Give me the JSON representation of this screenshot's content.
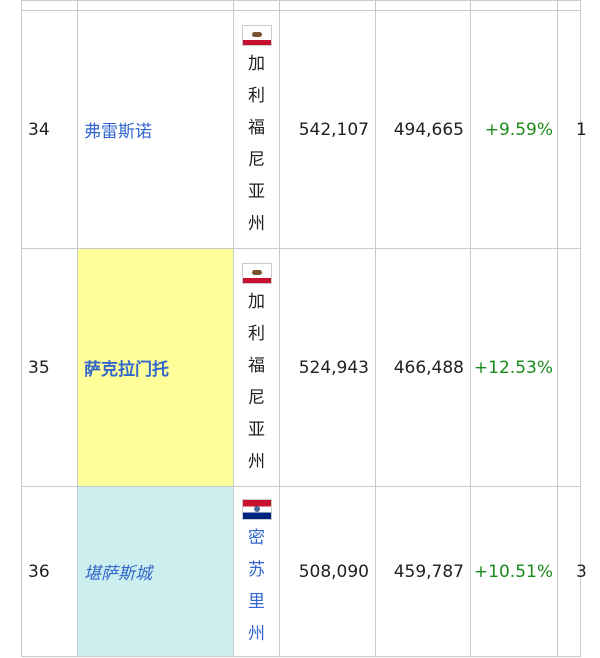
{
  "rows": [
    {
      "rank": "34",
      "city": "弗雷斯诺",
      "state_chars": [
        "加",
        "利",
        "福",
        "尼",
        "亚",
        "州"
      ],
      "flag": "california-flag",
      "pop_2020": "542,107",
      "pop_2010": "494,665",
      "change": "+9.59%",
      "next": "1",
      "highlight": "#ffffff"
    },
    {
      "rank": "35",
      "city": "萨克拉门托",
      "state_chars": [
        "加",
        "利",
        "福",
        "尼",
        "亚",
        "州"
      ],
      "flag": "california-flag",
      "pop_2020": "524,943",
      "pop_2010": "466,488",
      "change": "+12.53%",
      "next": "",
      "highlight": "#ffff99"
    },
    {
      "rank": "36",
      "city": "堪萨斯城",
      "state_chars": [
        "密",
        "苏",
        "里",
        "州"
      ],
      "flag": "missouri-flag",
      "pop_2020": "508,090",
      "pop_2010": "459,787",
      "change": "+10.51%",
      "next": "3",
      "highlight": "#cceeee"
    }
  ],
  "colors": {
    "link": "#3366cc",
    "positive_change": "#1a8b1a",
    "capital_highlight": "#ffff99",
    "largest_city_highlight": "#cceeee"
  }
}
